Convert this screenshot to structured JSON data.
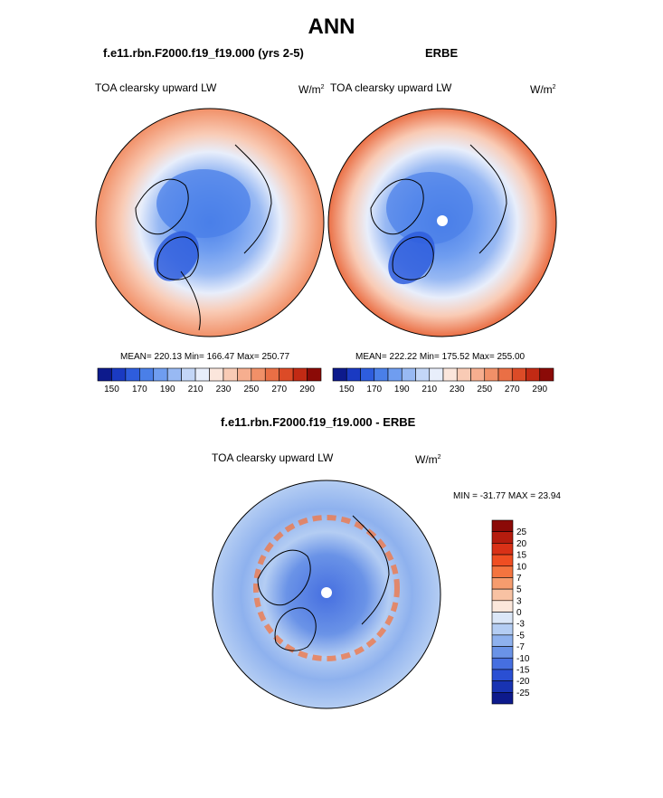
{
  "page_title": "ANN",
  "panels": [
    {
      "title": "f.e11.rbn.F2000.f19_f19.000 (yrs 2-5)",
      "variable": "TOA clearsky upward LW",
      "units_base": "W/m",
      "units_exp": "2",
      "stats": "MEAN= 220.13  Min= 166.47  Max= 250.77"
    },
    {
      "title": "ERBE",
      "variable": "TOA clearsky upward LW",
      "units_base": "W/m",
      "units_exp": "2",
      "stats": "MEAN= 222.22  Min= 175.52  Max= 255.00"
    },
    {
      "title": "f.e11.rbn.F2000.f19_f19.000 - ERBE",
      "variable": "TOA clearsky upward LW",
      "units_base": "W/m",
      "units_exp": "2",
      "stats": "MIN = -31.77 MAX =  23.94"
    }
  ],
  "chart_data": [
    {
      "type": "heatmap",
      "projection": "north polar stereographic",
      "title": "f.e11.rbn.F2000.f19_f19.000 (yrs 2-5)",
      "variable": "TOA clearsky upward LW",
      "units": "W/m2",
      "mean": 220.13,
      "min": 166.47,
      "max": 250.77,
      "colorbar_ticks": [
        "150",
        "170",
        "190",
        "210",
        "230",
        "250",
        "270",
        "290"
      ],
      "colorbar_colors": [
        "#0d1a8c",
        "#1a3ac2",
        "#2e5ddd",
        "#4a7fe8",
        "#6f9df0",
        "#98b9f3",
        "#c3d6f7",
        "#e8eefb",
        "#fbe6dc",
        "#f9cbb5",
        "#f6ae8f",
        "#f19068",
        "#ea6f45",
        "#dc4b27",
        "#c22a14",
        "#8b0a07"
      ],
      "colorbar_range": [
        140,
        300
      ]
    },
    {
      "type": "heatmap",
      "projection": "north polar stereographic",
      "title": "ERBE",
      "variable": "TOA clearsky upward LW",
      "units": "W/m2",
      "mean": 222.22,
      "min": 175.52,
      "max": 255.0,
      "colorbar_ticks": [
        "150",
        "170",
        "190",
        "210",
        "230",
        "250",
        "270",
        "290"
      ],
      "colorbar_colors": [
        "#0d1a8c",
        "#1a3ac2",
        "#2e5ddd",
        "#4a7fe8",
        "#6f9df0",
        "#98b9f3",
        "#c3d6f7",
        "#e8eefb",
        "#fbe6dc",
        "#f9cbb5",
        "#f6ae8f",
        "#f19068",
        "#ea6f45",
        "#dc4b27",
        "#c22a14",
        "#8b0a07"
      ],
      "colorbar_range": [
        140,
        300
      ]
    },
    {
      "type": "heatmap",
      "projection": "north polar stereographic",
      "title": "f.e11.rbn.F2000.f19_f19.000 - ERBE",
      "variable": "TOA clearsky upward LW",
      "units": "W/m2",
      "min": -31.77,
      "max": 23.94,
      "colorbar_ticks": [
        "25",
        "20",
        "15",
        "10",
        "7",
        "5",
        "3",
        "0",
        "-3",
        "-5",
        "-7",
        "-10",
        "-15",
        "-20",
        "-25"
      ],
      "colorbar_colors": [
        "#8b0a07",
        "#b51c0e",
        "#d93117",
        "#ef4e22",
        "#f4743f",
        "#f69c6e",
        "#f8c2a3",
        "#fbe7db",
        "#dbe7f8",
        "#b4cdf3",
        "#8eb1ee",
        "#6a93e7",
        "#466fe0",
        "#2a4fd3",
        "#1833b2",
        "#0d1a8c"
      ]
    }
  ]
}
